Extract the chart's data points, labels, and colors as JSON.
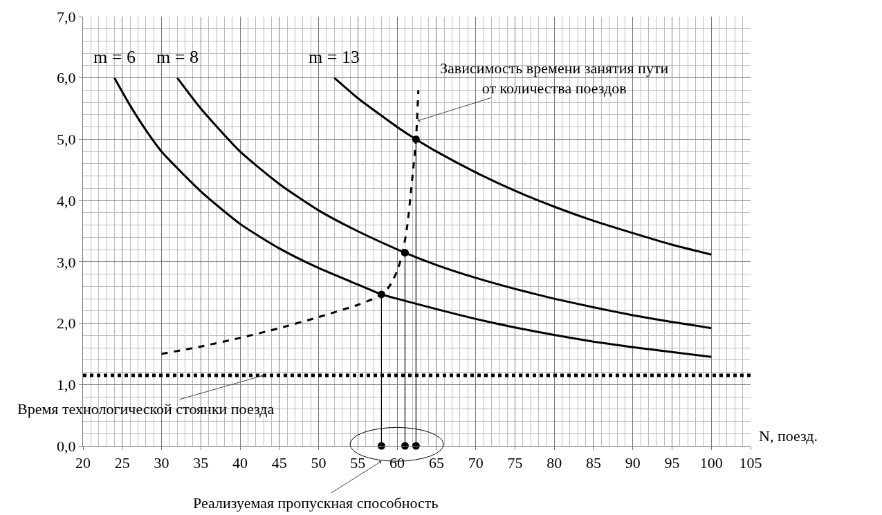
{
  "chart_data": {
    "type": "line",
    "xlabel": "N, поезд.",
    "xlim": [
      20,
      105
    ],
    "xticks": [
      20,
      25,
      30,
      35,
      40,
      45,
      50,
      55,
      60,
      65,
      70,
      75,
      80,
      85,
      90,
      95,
      100,
      105
    ],
    "ylim": [
      0,
      7
    ],
    "yticks": [
      {
        "value": 0,
        "label": "0,0"
      },
      {
        "value": 1,
        "label": "1,0"
      },
      {
        "value": 2,
        "label": "2,0"
      },
      {
        "value": 3,
        "label": "3,0"
      },
      {
        "value": 4,
        "label": "4,0"
      },
      {
        "value": 5,
        "label": "5,0"
      },
      {
        "value": 6,
        "label": "6,0"
      },
      {
        "value": 7,
        "label": "7,0"
      }
    ],
    "grid": true,
    "legend": false,
    "line_style": "solid",
    "marker": "none",
    "series": [
      {
        "name": "m = 6",
        "color": "#000000",
        "x": [
          24,
          26,
          28,
          30,
          35,
          40,
          45,
          50,
          55,
          58,
          60,
          65,
          70,
          75,
          80,
          85,
          90,
          95,
          100
        ],
        "values": [
          6.0,
          5.55,
          5.15,
          4.8,
          4.15,
          3.62,
          3.22,
          2.9,
          2.63,
          2.47,
          2.4,
          2.23,
          2.07,
          1.93,
          1.81,
          1.7,
          1.61,
          1.53,
          1.45
        ]
      },
      {
        "name": "m = 8",
        "color": "#000000",
        "x": [
          32,
          35,
          40,
          45,
          50,
          55,
          61,
          65,
          70,
          75,
          80,
          85,
          90,
          95,
          100
        ],
        "values": [
          6.0,
          5.5,
          4.8,
          4.27,
          3.84,
          3.5,
          3.15,
          2.95,
          2.74,
          2.56,
          2.4,
          2.26,
          2.13,
          2.02,
          1.92
        ]
      },
      {
        "name": "m = 13",
        "color": "#000000",
        "x": [
          52,
          55,
          60,
          62.4,
          65,
          70,
          75,
          80,
          85,
          90,
          95,
          100
        ],
        "values": [
          6.0,
          5.67,
          5.2,
          5.0,
          4.8,
          4.46,
          4.16,
          3.9,
          3.67,
          3.47,
          3.28,
          3.12
        ]
      },
      {
        "color": "#000000",
        "line_style": "dashed",
        "x": [
          30,
          35,
          40,
          45,
          50,
          55,
          57,
          58,
          59,
          60,
          60.7,
          61.3,
          61.8,
          62.4,
          62.7
        ],
        "values": [
          1.5,
          1.62,
          1.76,
          1.92,
          2.1,
          2.3,
          2.4,
          2.47,
          2.6,
          2.85,
          3.15,
          3.6,
          4.2,
          5.0,
          5.8
        ]
      },
      {
        "color": "#000000",
        "x": [
          58,
          58
        ],
        "values": [
          2.47,
          0
        ]
      },
      {
        "color": "#000000",
        "x": [
          61,
          61
        ],
        "values": [
          3.15,
          0
        ]
      },
      {
        "color": "#000000",
        "x": [
          62.4,
          62.4
        ],
        "values": [
          5.0,
          0
        ]
      },
      {
        "type": "scatter",
        "color": "#000000",
        "marker": "circle",
        "x": [
          58,
          61,
          62.4
        ],
        "values": [
          2.47,
          3.15,
          5.0
        ]
      },
      {
        "type": "scatter",
        "color": "#000000",
        "marker": "circle",
        "x": [
          58,
          61,
          62.4
        ],
        "values": [
          0,
          0,
          0
        ]
      }
    ],
    "ref_lines": [
      {
        "axis": "y",
        "value": 1.15,
        "label": "Время технологической стоянки поезда",
        "line_style": "dotted",
        "color": "#000000"
      }
    ],
    "annotations": [
      {
        "text": "Зависимость времени занятия пути\nот количества поездов",
        "x": 62.6,
        "y": 5.3
      },
      "Реализуемая пропускная способность"
    ]
  }
}
